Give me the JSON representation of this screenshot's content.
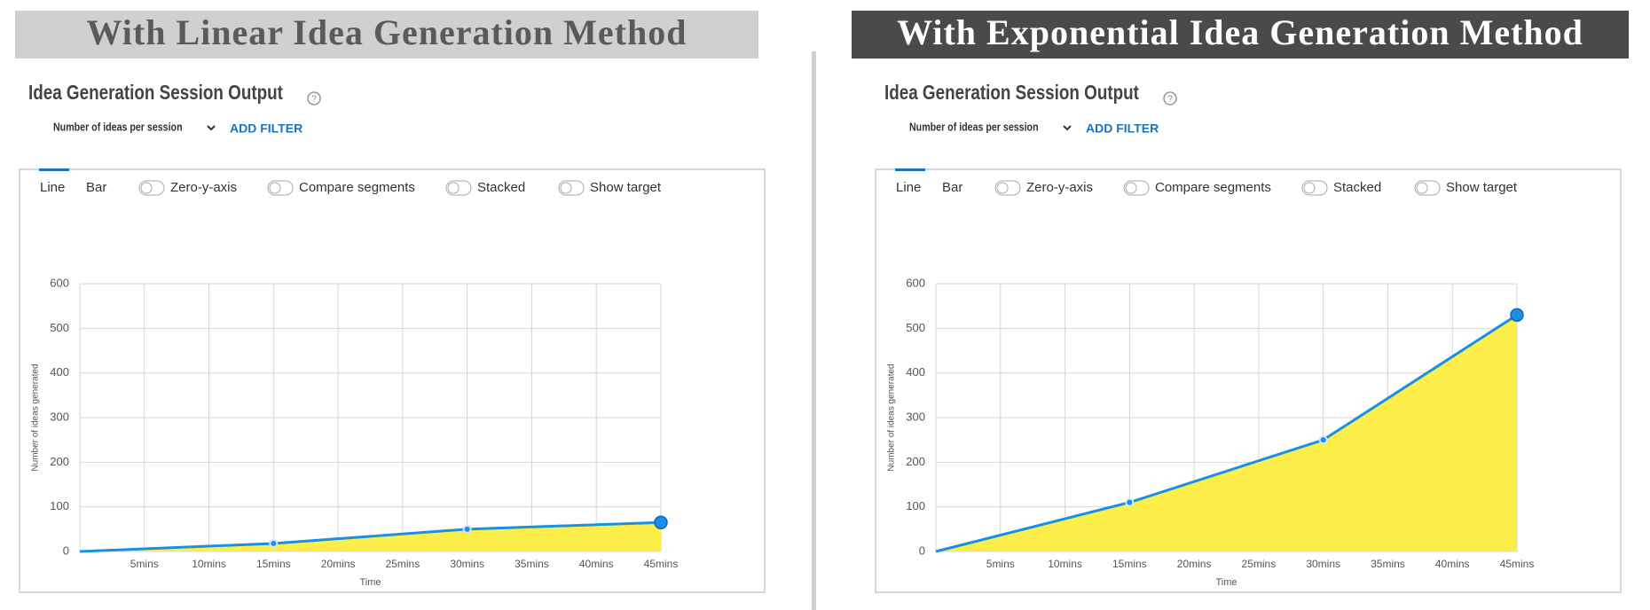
{
  "chart_data": [
    {
      "type": "line",
      "heading": "With Linear Idea Generation Method",
      "title": "Idea Generation Session Output",
      "filter_label": "Number of ideas per session",
      "add_filter": "ADD FILTER",
      "tabs": [
        "Line",
        "Bar"
      ],
      "toggles": [
        "Zero-y-axis",
        "Compare segments",
        "Stacked",
        "Show target"
      ],
      "x_label": "Time",
      "y_label": "Number of ideas generated",
      "x": [
        0,
        15,
        30,
        45
      ],
      "values": [
        0,
        18,
        50,
        65
      ],
      "color": "#1b8fe3",
      "area_color": "#fdee4a",
      "xlim": [
        0,
        45
      ],
      "xticks": [
        {
          "value": 5,
          "label": "5mins"
        },
        {
          "value": 10,
          "label": "10mins"
        },
        {
          "value": 15,
          "label": "15mins"
        },
        {
          "value": 20,
          "label": "20mins"
        },
        {
          "value": 25,
          "label": "25mins"
        },
        {
          "value": 30,
          "label": "30mins"
        },
        {
          "value": 35,
          "label": "35mins"
        },
        {
          "value": 40,
          "label": "40mins"
        },
        {
          "value": 45,
          "label": "45mins"
        }
      ],
      "ylim": [
        0,
        600
      ],
      "yticks": [
        0,
        100,
        200,
        300,
        400,
        500,
        600
      ],
      "grid": true
    },
    {
      "type": "line",
      "heading": "With Exponential Idea Generation Method",
      "title": "Idea Generation Session Output",
      "filter_label": "Number of ideas per session",
      "add_filter": "ADD FILTER",
      "tabs": [
        "Line",
        "Bar"
      ],
      "toggles": [
        "Zero-y-axis",
        "Compare segments",
        "Stacked",
        "Show target"
      ],
      "x_label": "Time",
      "y_label": "Number of ideas generated",
      "x": [
        0,
        15,
        30,
        45
      ],
      "values": [
        0,
        110,
        250,
        530
      ],
      "color": "#1b8fe3",
      "area_color": "#fdee4a",
      "xlim": [
        0,
        45
      ],
      "xticks": [
        {
          "value": 5,
          "label": "5mins"
        },
        {
          "value": 10,
          "label": "10mins"
        },
        {
          "value": 15,
          "label": "15mins"
        },
        {
          "value": 20,
          "label": "20mins"
        },
        {
          "value": 25,
          "label": "25mins"
        },
        {
          "value": 30,
          "label": "30mins"
        },
        {
          "value": 35,
          "label": "35mins"
        },
        {
          "value": 40,
          "label": "40mins"
        },
        {
          "value": 45,
          "label": "45mins"
        }
      ],
      "ylim": [
        0,
        600
      ],
      "yticks": [
        0,
        100,
        200,
        300,
        400,
        500,
        600
      ],
      "grid": true
    }
  ]
}
